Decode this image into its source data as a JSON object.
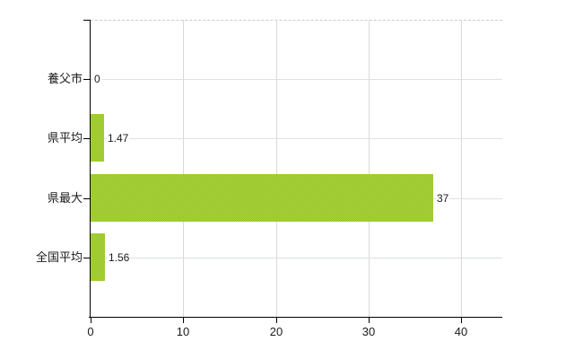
{
  "chart_data": {
    "type": "bar",
    "orientation": "horizontal",
    "title": "",
    "xlabel": "",
    "ylabel": "",
    "categories": [
      "養父市",
      "県平均",
      "県最大",
      "全国平均"
    ],
    "values": [
      0,
      1.47,
      37,
      1.56
    ],
    "value_labels": [
      "0",
      "1.47",
      "37",
      "1.56"
    ],
    "x_ticks": [
      0,
      10,
      20,
      30,
      40
    ],
    "x_tick_labels": [
      "0",
      "10",
      "20",
      "30",
      "40"
    ],
    "xlim": [
      0,
      44.5
    ],
    "grid": true,
    "legend": false,
    "colors": {
      "bar": "#9dc72f",
      "bar_dither_light": "#aed53f",
      "bar_dither_dark": "#92c226",
      "vertical_gridline": "#d9d9d9",
      "category_gridline": "#dbe2db",
      "plot_top_border": "#cccccc",
      "axis": "#000000",
      "text": "#1a1a1a",
      "background": "#ffffff"
    }
  }
}
